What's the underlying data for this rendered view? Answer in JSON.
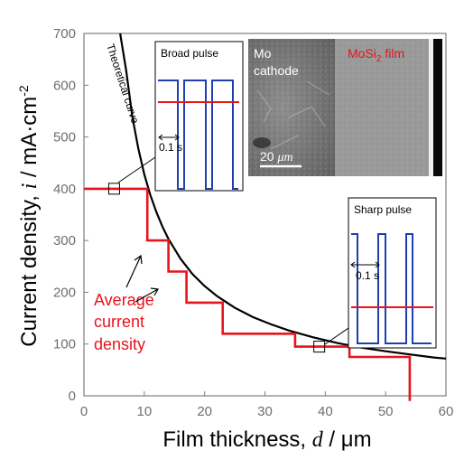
{
  "chart_data": {
    "type": "line",
    "xlabel_prefix": "Film thickness, ",
    "xlabel_var": "d",
    "xlabel_unit": " / μm",
    "ylabel_prefix": "Current density, ",
    "ylabel_var": "i",
    "ylabel_unit": " / mA·cm",
    "ylabel_exp": "-2",
    "xlim": [
      0,
      60
    ],
    "ylim": [
      0,
      700
    ],
    "xticks": [
      0,
      10,
      20,
      30,
      40,
      50,
      60
    ],
    "yticks": [
      0,
      100,
      200,
      300,
      400,
      500,
      600,
      700
    ],
    "series": [
      {
        "name": "Theoretical curve",
        "color": "#000000",
        "x": [
          6,
          7,
          8,
          9,
          10,
          11,
          12,
          13,
          14,
          16,
          18,
          20,
          22,
          25,
          28,
          31,
          34,
          38,
          42,
          46,
          50,
          54,
          58,
          60
        ],
        "y": [
          700,
          628,
          540,
          478,
          428,
          388,
          355,
          327,
          303,
          265,
          235,
          212,
          193,
          170,
          152,
          138,
          126,
          113,
          102,
          93,
          86,
          80,
          74,
          72
        ]
      },
      {
        "name": "Average current density",
        "color": "#e8141b",
        "x": [
          0,
          10.5,
          10.5,
          14,
          14,
          17,
          17,
          23,
          23,
          35,
          35,
          44,
          44,
          54,
          54
        ],
        "y": [
          400,
          400,
          300,
          300,
          240,
          240,
          180,
          180,
          120,
          120,
          95,
          95,
          75,
          75,
          -10
        ]
      }
    ],
    "markers": [
      {
        "x": 5,
        "y": 400
      },
      {
        "x": 39,
        "y": 95
      }
    ],
    "annotations": {
      "theoretical_curve": "Theoretical curve",
      "average_line1": "Average",
      "average_line2": "current",
      "average_line3": "density"
    },
    "insets": {
      "broad_pulse": {
        "title": "Broad pulse",
        "period_label": "0.1 s"
      },
      "sharp_pulse": {
        "title": "Sharp pulse",
        "period_label": "0.1 s"
      },
      "micrograph": {
        "cathode_line1": "Mo",
        "cathode_line2": "cathode",
        "film_label": "MoSi",
        "film_sub": "2",
        "film_suffix": " film",
        "scale_value": "20 ",
        "scale_unit": "μm"
      }
    },
    "colors": {
      "pulse_blue": "#1f3fb0",
      "average_red": "#e8141b",
      "axis_gray": "#7f7f7f"
    }
  }
}
